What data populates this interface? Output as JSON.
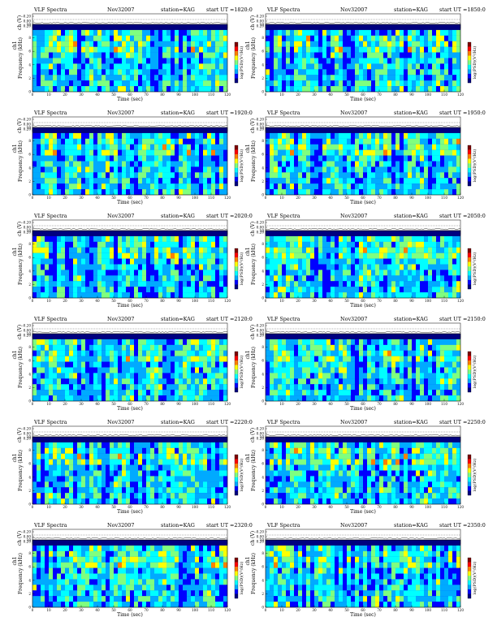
{
  "spectrograms": [
    {
      "title": "VLF Spectra",
      "date": "Nov32007",
      "station": "station=KAG",
      "start": "start  UT  =1820:0",
      "xlabel": "Time  (sec)",
      "ylabel": "Frequency  (kHz)",
      "ch_label": "ch1",
      "ch_axis_label": "ch (V)",
      "cbar_label": "log(PSD)(V²/Hz)"
    },
    {
      "title": "VLF Spectra",
      "date": "Nov32007",
      "station": "station=KAG",
      "start": "start  UT  =1850:0",
      "xlabel": "Time  (sec)",
      "ylabel": "Frequency  (kHz)",
      "ch_label": "ch1",
      "ch_axis_label": "ch (V)",
      "cbar_label": "log(PSD)(V²/Hz)"
    },
    {
      "title": "VLF Spectra",
      "date": "Nov32007",
      "station": "station=KAG",
      "start": "start  UT  =1920:0",
      "xlabel": "Time  (sec)",
      "ylabel": "Frequency  (kHz)",
      "ch_label": "ch1",
      "ch_axis_label": "ch (V)",
      "cbar_label": "log(PSD)(V²/Hz)"
    },
    {
      "title": "VLF Spectra",
      "date": "Nov32007",
      "station": "station=KAG",
      "start": "start  UT  =1950:0",
      "xlabel": "Time  (sec)",
      "ylabel": "Frequency  (kHz)",
      "ch_label": "ch1",
      "ch_axis_label": "ch (V)",
      "cbar_label": "log(PSD)(V²/Hz)"
    },
    {
      "title": "VLF Spectra",
      "date": "Nov32007",
      "station": "station=KAG",
      "start": "start  UT  =2020:0",
      "xlabel": "Time  (sec)",
      "ylabel": "Frequency  (kHz)",
      "ch_label": "ch1",
      "ch_axis_label": "ch (V)",
      "cbar_label": "log(PSD)(V²/Hz)"
    },
    {
      "title": "VLF Spectra",
      "date": "Nov32007",
      "station": "station=KAG",
      "start": "start  UT  =2050:0",
      "xlabel": "Time  (sec)",
      "ylabel": "Frequency  (kHz)",
      "ch_label": "ch1",
      "ch_axis_label": "ch (V)",
      "cbar_label": "log(PSD)(V²/Hz)"
    },
    {
      "title": "VLF Spectra",
      "date": "Nov32007",
      "station": "station=KAG",
      "start": "start  UT  =2120:0",
      "xlabel": "Time  (sec)",
      "ylabel": "Frequency  (kHz)",
      "ch_label": "ch1",
      "ch_axis_label": "ch (V)",
      "cbar_label": "log(PSD)(V²/Hz)"
    },
    {
      "title": "VLF Spectra",
      "date": "Nov32007",
      "station": "station=KAG",
      "start": "start  UT  =2150:0",
      "xlabel": "Time  (sec)",
      "ylabel": "Frequency  (kHz)",
      "ch_label": "ch1",
      "ch_axis_label": "ch (V)",
      "cbar_label": "log(PSD)(V²/Hz)"
    },
    {
      "title": "VLF Spectra",
      "date": "Nov32007",
      "station": "station=KAG",
      "start": "start  UT  =2220:0",
      "xlabel": "Time  (sec)",
      "ylabel": "Frequency  (kHz)",
      "ch_label": "ch1",
      "ch_axis_label": "ch (V)",
      "cbar_label": "log(PSD)(V²/Hz)"
    },
    {
      "title": "VLF Spectra",
      "date": "Nov32007",
      "station": "station=KAG",
      "start": "start  UT  =2250:0",
      "xlabel": "Time  (sec)",
      "ylabel": "Frequency  (kHz)",
      "ch_label": "ch1",
      "ch_axis_label": "ch (V)",
      "cbar_label": "log(PSD)(V²/Hz)"
    },
    {
      "title": "VLF Spectra",
      "date": "Nov32007",
      "station": "station=KAG",
      "start": "start  UT  =2320:0",
      "xlabel": "Time  (sec)",
      "ylabel": "Frequency  (kHz)",
      "ch_label": "ch1",
      "ch_axis_label": "ch (V)",
      "cbar_label": "log(PSD)(V²/Hz)"
    },
    {
      "title": "VLF Spectra",
      "date": "Nov32007",
      "station": "station=KAG",
      "start": "start  UT  =2350:0",
      "xlabel": "Time  (sec)",
      "ylabel": "Frequency  (kHz)",
      "ch_label": "ch1",
      "ch_axis_label": "ch (V)",
      "cbar_label": "log(PSD)(V²/Hz)"
    }
  ],
  "chart_data": {
    "type": "heatmap",
    "panel_count": 12,
    "grid": "6 rows x 2 columns",
    "x_axis": {
      "label": "Time  (sec)",
      "range": [
        0,
        120
      ],
      "ticks": [
        "0",
        "10",
        "20",
        "30",
        "40",
        "50",
        "60",
        "70",
        "80",
        "90",
        "100",
        "110",
        "120"
      ]
    },
    "y_axis": {
      "label": "Frequency  (kHz)",
      "range": [
        0,
        10
      ],
      "ticks": [
        "0",
        "2",
        "4",
        "6",
        "8",
        "10"
      ]
    },
    "ch_axis": {
      "label": "ch (V)",
      "ticks": [
        "-0.20",
        "0.00",
        "0.20"
      ]
    },
    "colorbar": {
      "label": "log(PSD)(V²/Hz)",
      "colors": [
        "#00007f",
        "#0000ff",
        "#00aaff",
        "#00ffff",
        "#7fff7f",
        "#ffff00",
        "#ff7f00",
        "#ff0000",
        "#7f0000"
      ]
    },
    "panels": [
      {
        "start_ut": "1820:0"
      },
      {
        "start_ut": "1850:0"
      },
      {
        "start_ut": "1920:0"
      },
      {
        "start_ut": "1950:0"
      },
      {
        "start_ut": "2020:0"
      },
      {
        "start_ut": "2050:0"
      },
      {
        "start_ut": "2120:0"
      },
      {
        "start_ut": "2150:0"
      },
      {
        "start_ut": "2220:0"
      },
      {
        "start_ut": "2250:0"
      },
      {
        "start_ut": "2320:0"
      },
      {
        "start_ut": "2350:0"
      }
    ]
  }
}
